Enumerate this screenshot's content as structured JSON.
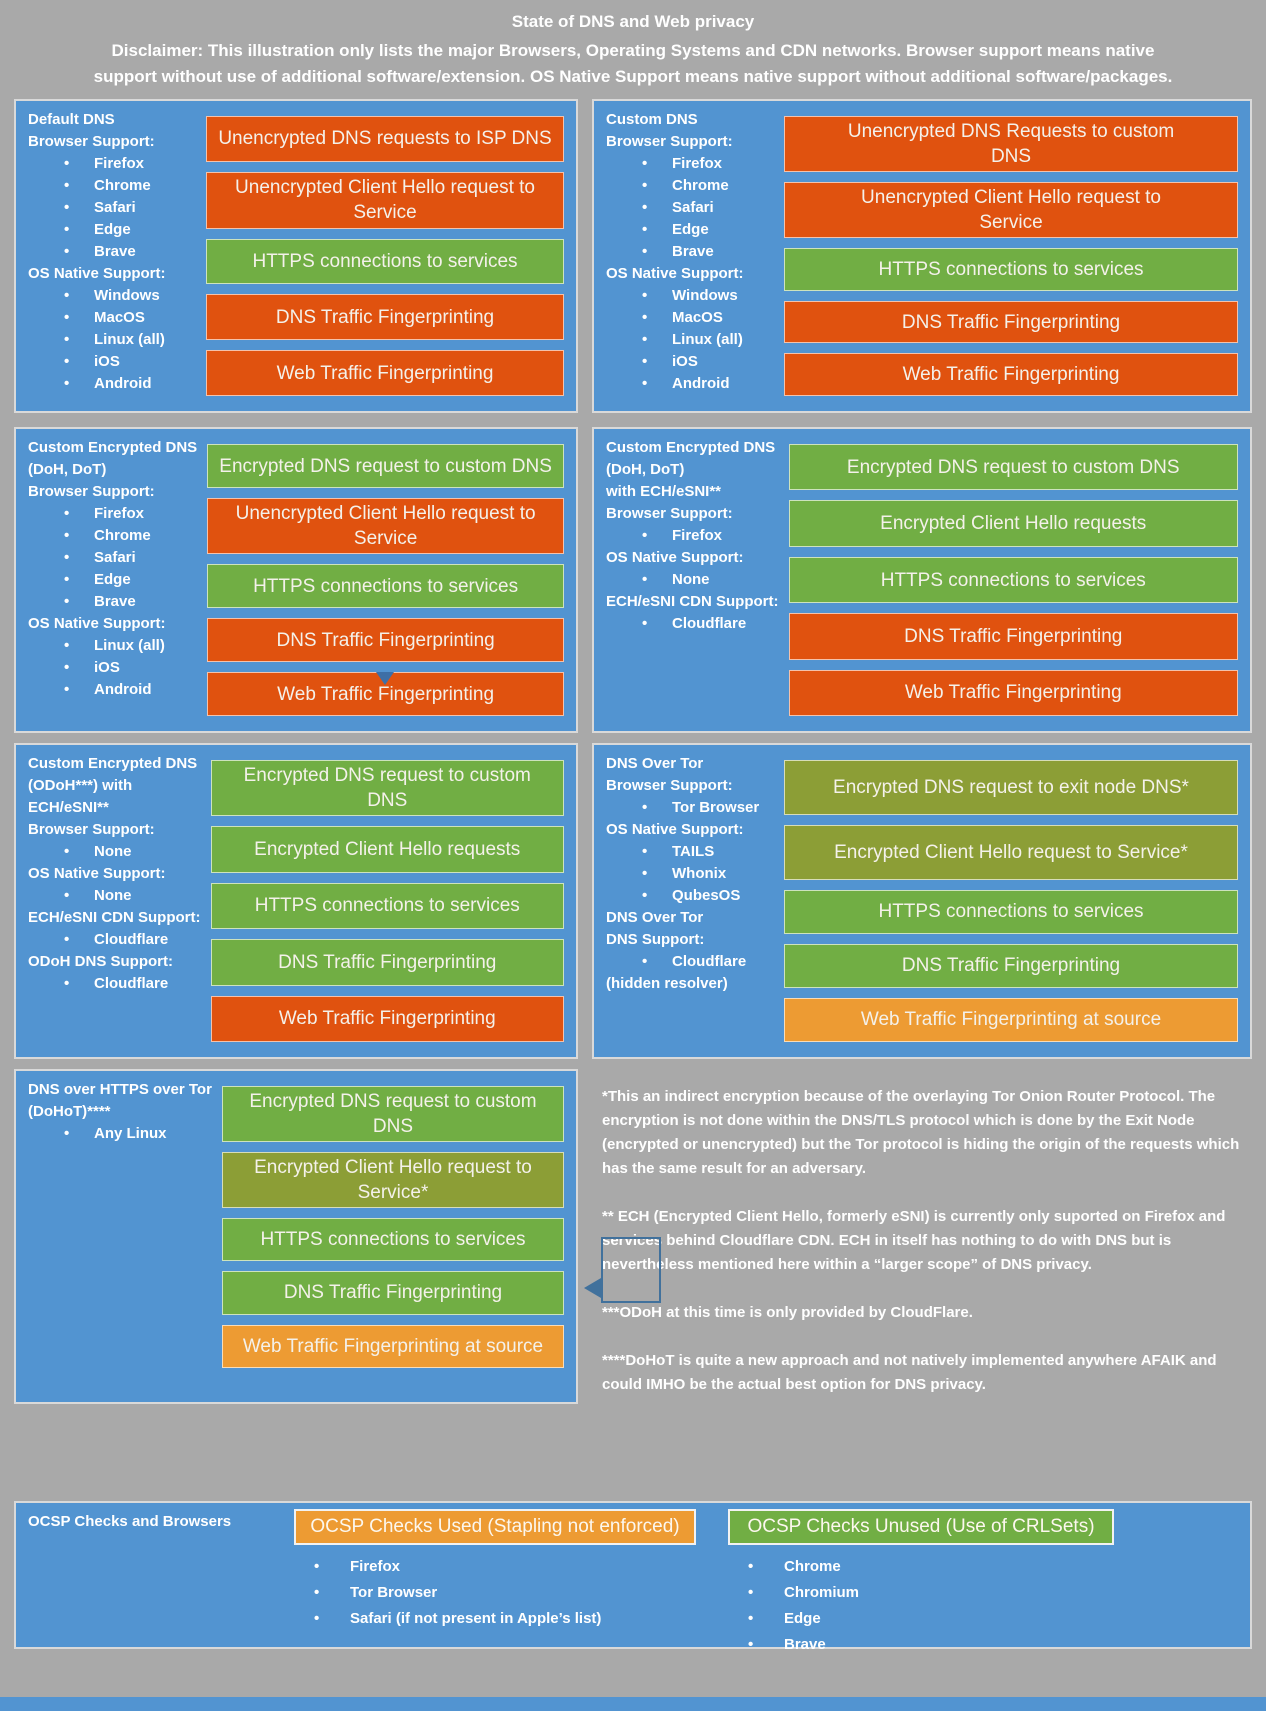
{
  "header": {
    "title": "State of DNS and Web privacy",
    "disclaimer": "Disclaimer: This illustration only lists the major Browsers, Operating Systems and CDN networks. Browser support means native support without use of additional software/extension. OS Native Support means native support without additional software/packages."
  },
  "colors": {
    "orange": "#E0520F",
    "green": "#71AE44",
    "olive": "#8C9E36",
    "amber": "#ED9B33",
    "panel_blue": "#5294D1",
    "background_gray": "#A9A9A9",
    "callout_blue": "#41719C"
  },
  "panels": [
    {
      "name": "default-dns",
      "info": [
        {
          "t": "h",
          "text": "Default DNS"
        },
        {
          "t": "h",
          "text": "Browser Support:"
        },
        {
          "t": "b",
          "text": "Firefox"
        },
        {
          "t": "b",
          "text": "Chrome"
        },
        {
          "t": "b",
          "text": "Safari"
        },
        {
          "t": "b",
          "text": "Edge"
        },
        {
          "t": "b",
          "text": "Brave"
        },
        {
          "t": "h",
          "text": "OS Native Support:"
        },
        {
          "t": "b",
          "text": "Windows"
        },
        {
          "t": "b",
          "text": "MacOS"
        },
        {
          "t": "b",
          "text": "Linux (all)"
        },
        {
          "t": "b",
          "text": "iOS"
        },
        {
          "t": "b",
          "text": "Android"
        }
      ],
      "bars": [
        {
          "label": "Unencrypted DNS requests to ISP DNS",
          "color": "orange"
        },
        {
          "label": "Unencrypted Client Hello request to Service",
          "color": "orange",
          "two": true
        },
        {
          "label": "HTTPS connections to services",
          "color": "green"
        },
        {
          "label": "DNS Traffic Fingerprinting",
          "color": "orange"
        },
        {
          "label": "Web Traffic Fingerprinting",
          "color": "orange"
        }
      ]
    },
    {
      "name": "custom-dns",
      "info": [
        {
          "t": "h",
          "text": "Custom DNS"
        },
        {
          "t": "h",
          "text": "Browser Support:"
        },
        {
          "t": "b",
          "text": "Firefox"
        },
        {
          "t": "b",
          "text": "Chrome"
        },
        {
          "t": "b",
          "text": "Safari"
        },
        {
          "t": "b",
          "text": "Edge"
        },
        {
          "t": "b",
          "text": "Brave"
        },
        {
          "t": "h",
          "text": "OS Native Support:"
        },
        {
          "t": "b",
          "text": "Windows"
        },
        {
          "t": "b",
          "text": "MacOS"
        },
        {
          "t": "b",
          "text": "Linux (all)"
        },
        {
          "t": "b",
          "text": "iOS"
        },
        {
          "t": "b",
          "text": "Android"
        }
      ],
      "bars": [
        {
          "label": "Unencrypted DNS Requests to custom DNS",
          "color": "orange",
          "two": true
        },
        {
          "label": "Unencrypted Client Hello request to Service",
          "color": "orange",
          "two": true
        },
        {
          "label": "HTTPS connections to services",
          "color": "green"
        },
        {
          "label": "DNS Traffic Fingerprinting",
          "color": "orange"
        },
        {
          "label": "Web Traffic Fingerprinting",
          "color": "orange"
        }
      ]
    },
    {
      "name": "custom-encrypted-dns-doh-dot",
      "info": [
        {
          "t": "h",
          "text": "Custom Encrypted DNS"
        },
        {
          "t": "h",
          "text": "(DoH, DoT)"
        },
        {
          "t": "h",
          "text": "Browser Support:"
        },
        {
          "t": "b",
          "text": "Firefox"
        },
        {
          "t": "b",
          "text": "Chrome"
        },
        {
          "t": "b",
          "text": "Safari"
        },
        {
          "t": "b",
          "text": "Edge"
        },
        {
          "t": "b",
          "text": "Brave"
        },
        {
          "t": "h",
          "text": "OS Native Support:"
        },
        {
          "t": "b",
          "text": "Linux (all)"
        },
        {
          "t": "b",
          "text": "iOS"
        },
        {
          "t": "b",
          "text": "Android"
        }
      ],
      "bars": [
        {
          "label": "Encrypted DNS request to custom DNS",
          "color": "green"
        },
        {
          "label": "Unencrypted Client Hello request to Service",
          "color": "orange",
          "two": true
        },
        {
          "label": "HTTPS connections to services",
          "color": "green"
        },
        {
          "label": "DNS Traffic Fingerprinting",
          "color": "orange"
        },
        {
          "label": "Web Traffic Fingerprinting",
          "color": "orange"
        }
      ]
    },
    {
      "name": "custom-encrypted-dns-with-ech",
      "info": [
        {
          "t": "h",
          "text": "Custom Encrypted DNS"
        },
        {
          "t": "h",
          "text": "(DoH, DoT)"
        },
        {
          "t": "h",
          "text": "with ECH/eSNI**"
        },
        {
          "t": "h",
          "text": "Browser Support:"
        },
        {
          "t": "b",
          "text": "Firefox"
        },
        {
          "t": "h",
          "text": "OS Native Support:"
        },
        {
          "t": "b",
          "text": "None"
        },
        {
          "t": "h",
          "text": "ECH/eSNI CDN Support:"
        },
        {
          "t": "b",
          "text": "Cloudflare"
        }
      ],
      "bars": [
        {
          "label": "Encrypted DNS request to custom DNS",
          "color": "green"
        },
        {
          "label": "Encrypted Client Hello requests",
          "color": "green"
        },
        {
          "label": "HTTPS connections to services",
          "color": "green"
        },
        {
          "label": "DNS Traffic Fingerprinting",
          "color": "orange"
        },
        {
          "label": "Web Traffic Fingerprinting",
          "color": "orange"
        }
      ]
    },
    {
      "name": "custom-encrypted-dns-odoh",
      "info": [
        {
          "t": "h",
          "text": "Custom Encrypted DNS"
        },
        {
          "t": "h",
          "text": "(ODoH***) with"
        },
        {
          "t": "h",
          "text": "ECH/eSNI**"
        },
        {
          "t": "h",
          "text": "Browser Support:"
        },
        {
          "t": "b",
          "text": "None"
        },
        {
          "t": "h",
          "text": "OS Native Support:"
        },
        {
          "t": "b",
          "text": "None"
        },
        {
          "t": "h",
          "text": "ECH/eSNI CDN Support:"
        },
        {
          "t": "b",
          "text": "Cloudflare"
        },
        {
          "t": "h",
          "text": "ODoH DNS Support:"
        },
        {
          "t": "b",
          "text": "Cloudflare"
        }
      ],
      "bars": [
        {
          "label": "Encrypted DNS request to custom DNS",
          "color": "green"
        },
        {
          "label": "Encrypted Client Hello requests",
          "color": "green"
        },
        {
          "label": "HTTPS connections to services",
          "color": "green"
        },
        {
          "label": "DNS Traffic Fingerprinting",
          "color": "green"
        },
        {
          "label": "Web Traffic Fingerprinting",
          "color": "orange"
        }
      ]
    },
    {
      "name": "dns-over-tor",
      "info": [
        {
          "t": "h",
          "text": "DNS Over Tor"
        },
        {
          "t": "h",
          "text": "Browser Support:"
        },
        {
          "t": "b",
          "text": "Tor Browser"
        },
        {
          "t": "h",
          "text": "OS Native Support:"
        },
        {
          "t": "b",
          "text": "TAILS"
        },
        {
          "t": "b",
          "text": "Whonix"
        },
        {
          "t": "b",
          "text": "QubesOS"
        },
        {
          "t": "h",
          "text": "DNS Over Tor"
        },
        {
          "t": "h",
          "text": "DNS Support:"
        },
        {
          "t": "b",
          "text": "Cloudflare"
        },
        {
          "t": "p",
          "text": "(hidden resolver)"
        }
      ],
      "bars": [
        {
          "label": "Encrypted DNS request to exit node DNS*",
          "color": "olive",
          "two": true
        },
        {
          "label": "Encrypted Client Hello request to Service*",
          "color": "olive",
          "two": true
        },
        {
          "label": "HTTPS connections to services",
          "color": "green"
        },
        {
          "label": "DNS Traffic Fingerprinting",
          "color": "green"
        },
        {
          "label": "Web Traffic Fingerprinting at source",
          "color": "amber"
        }
      ]
    },
    {
      "name": "dohot",
      "info": [
        {
          "t": "h",
          "text": "DNS over HTTPS over Tor"
        },
        {
          "t": "h",
          "text": "(DoHoT)****"
        },
        {
          "t": "b",
          "text": "Any Linux"
        }
      ],
      "bars": [
        {
          "label": "Encrypted DNS request to custom DNS",
          "color": "green"
        },
        {
          "label": "Encrypted Client Hello request to Service*",
          "color": "olive",
          "two": true
        },
        {
          "label": "HTTPS connections to services",
          "color": "green"
        },
        {
          "label": "DNS Traffic Fingerprinting",
          "color": "green"
        },
        {
          "label": "Web Traffic Fingerprinting at source",
          "color": "amber"
        }
      ]
    }
  ],
  "notes": [
    "*This an indirect encryption because of the overlaying Tor Onion Router Protocol. The encryption is not done within the DNS/TLS protocol which is done by the Exit Node (encrypted or unencrypted) but the Tor protocol is hiding the origin of the requests which has the same result for an adversary.",
    "** ECH (Encrypted Client Hello, formerly eSNI) is currently only suported on Firefox and services behind Cloudflare CDN. ECH in itself has nothing to do with DNS but is nevertheless mentioned here within a “larger scope” of DNS privacy.",
    "***ODoH at this time is only provided by CloudFlare.",
    "****DoHoT is quite a new approach and not natively implemented anywhere AFAIK and could IMHO be the actual best option for DNS privacy."
  ],
  "ocsp": {
    "title": "OCSP Checks and Browsers",
    "used": {
      "header": "OCSP Checks Used (Stapling not enforced)",
      "color": "amber",
      "items": [
        "Firefox",
        "Tor Browser",
        "Safari (if not present in Apple’s list)"
      ]
    },
    "unused": {
      "header": "OCSP Checks Unused (Use of CRLSets)",
      "color": "green",
      "items": [
        "Chrome",
        "Chromium",
        "Edge",
        "Brave"
      ]
    }
  }
}
